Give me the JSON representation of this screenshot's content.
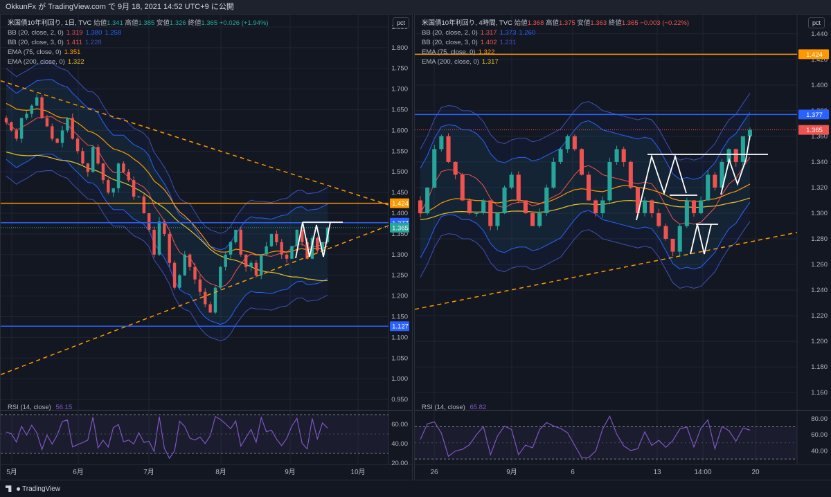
{
  "header": {
    "text": "OkkunFx が TradingView.com で 9月 18, 2021 14:52 UTC+9 に公開"
  },
  "footer": {
    "brand": "TradingView"
  },
  "colors": {
    "bg": "#131722",
    "grid": "#1f2433",
    "up": "#26a69a",
    "down": "#ef5350",
    "bb2": "#2962ff",
    "bb3": "#3f51b5",
    "ema75": "#ff9800",
    "ema200": "#e6c02b",
    "blue_line": "#2962ff",
    "orange_line": "#ff9800",
    "rsi": "#7e57c2"
  },
  "panels": [
    {
      "legend": {
        "title": "米国債10年利回り, 1日, TVC",
        "ohlc": [
          [
            "始値",
            "1.341"
          ],
          [
            "高値",
            "1.385"
          ],
          [
            "安値",
            "1.326"
          ],
          [
            "終値",
            "1.365"
          ]
        ],
        "change": "+0.026 (+1.94%)",
        "indicators": [
          {
            "label": "BB (20, close, 2, 0)",
            "values": [
              "1.319",
              "1.380",
              "1.258"
            ]
          },
          {
            "label": "BB (20, close, 3, 0)",
            "values": [
              "1.411",
              "1.228"
            ]
          },
          {
            "label": "EMA (75, close, 0)",
            "values": [
              "1.351"
            ]
          },
          {
            "label": "EMA (200, close, 0)",
            "values": [
              "1.322"
            ]
          }
        ]
      },
      "rsi_label": "RSI (14, close)",
      "rsi_value": "56.15",
      "pct_label": "pct",
      "price_labels": [
        {
          "v": "1.424",
          "c": "#ff9800"
        },
        {
          "v": "1.377",
          "c": "#2962ff"
        },
        {
          "v": "1.365",
          "c": "#26a69a"
        },
        {
          "v": "1.127",
          "c": "#2962ff"
        }
      ],
      "x_labels": [
        "5月",
        "6月",
        "7月",
        "8月",
        "9月",
        "10月"
      ],
      "y_ticks": [
        "1.850",
        "1.800",
        "1.750",
        "1.700",
        "1.650",
        "1.600",
        "1.550",
        "1.500",
        "1.450",
        "1.400",
        "1.350",
        "1.300",
        "1.250",
        "1.200",
        "1.150",
        "1.100",
        "1.050",
        "1.000",
        "0.950"
      ],
      "rsi_ticks": [
        "60.00",
        "40.00",
        "20.00"
      ]
    },
    {
      "legend": {
        "title": "米国債10年利回り, 4時間, TVC",
        "ohlc": [
          [
            "始値",
            "1.368"
          ],
          [
            "高値",
            "1.375"
          ],
          [
            "安値",
            "1.363"
          ],
          [
            "終値",
            "1.365"
          ]
        ],
        "change": "−0.003 (−0.22%)",
        "indicators": [
          {
            "label": "BB (20, close, 2, 0)",
            "values": [
              "1.317",
              "1.373",
              "1.260"
            ]
          },
          {
            "label": "BB (20, close, 3, 0)",
            "values": [
              "1.402",
              "1.231"
            ]
          },
          {
            "label": "EMA (75, close, 0)",
            "values": [
              "1.322"
            ]
          },
          {
            "label": "EMA (200, close, 0)",
            "values": [
              "1.317"
            ]
          }
        ]
      },
      "rsi_label": "RSI (14, close)",
      "rsi_value": "65.82",
      "pct_label": "pct",
      "price_labels": [
        {
          "v": "1.424",
          "c": "#ff9800"
        },
        {
          "v": "1.377",
          "c": "#2962ff"
        },
        {
          "v": "1.365",
          "c": "#ef5350"
        }
      ],
      "x_labels": [
        "26",
        "9月",
        "6",
        "13",
        "14:00",
        "20"
      ],
      "y_ticks": [
        "1.440",
        "1.420",
        "1.400",
        "1.380",
        "1.360",
        "1.340",
        "1.320",
        "1.300",
        "1.280",
        "1.260",
        "1.240",
        "1.220",
        "1.200",
        "1.180",
        "1.160"
      ],
      "rsi_ticks": [
        "80.00",
        "60.00",
        "40.00"
      ]
    }
  ],
  "chart_data": [
    {
      "type": "candlestick",
      "title": "米国債10年利回り, 1日, TVC",
      "x_categories": [
        "5月",
        "6月",
        "7月",
        "8月",
        "9月",
        "10月"
      ],
      "ylim": [
        0.92,
        1.88
      ],
      "close_path": [
        1.62,
        1.6,
        1.58,
        1.63,
        1.64,
        1.66,
        1.68,
        1.63,
        1.61,
        1.58,
        1.57,
        1.6,
        1.63,
        1.58,
        1.55,
        1.52,
        1.5,
        1.56,
        1.52,
        1.48,
        1.45,
        1.46,
        1.52,
        1.5,
        1.48,
        1.44,
        1.44,
        1.4,
        1.36,
        1.3,
        1.38,
        1.35,
        1.28,
        1.22,
        1.25,
        1.3,
        1.27,
        1.24,
        1.21,
        1.18,
        1.16,
        1.22,
        1.27,
        1.3,
        1.33,
        1.36,
        1.3,
        1.27,
        1.28,
        1.25,
        1.3,
        1.32,
        1.35,
        1.33,
        1.3,
        1.29,
        1.32,
        1.36,
        1.33,
        1.29,
        1.34,
        1.31,
        1.33,
        1.365
      ],
      "horizontal_lines": [
        {
          "value": 1.424,
          "color": "orange"
        },
        {
          "value": 1.377,
          "color": "blue"
        },
        {
          "value": 1.127,
          "color": "blue"
        }
      ],
      "trendlines": [
        {
          "from": [
            0,
            1.72
          ],
          "to": [
            1,
            1.42
          ],
          "style": "dashed"
        },
        {
          "from": [
            0,
            1.01
          ],
          "to": [
            1,
            1.37
          ],
          "style": "dashed"
        }
      ],
      "bb2_upper": "1.380",
      "bb2_lower": "1.258",
      "bb3_upper": "1.411",
      "bb3_lower": "1.228",
      "ema75": "1.351",
      "ema200": "1.322",
      "rsi": {
        "value": 56.15,
        "levels": [
          70,
          30
        ],
        "ylim": [
          20,
          70
        ]
      }
    },
    {
      "type": "candlestick",
      "title": "米国債10年利回り, 4時間, TVC",
      "x_categories": [
        "26",
        "9月",
        "6",
        "13",
        "14:00",
        "20"
      ],
      "ylim": [
        1.145,
        1.455
      ],
      "close_path": [
        1.3,
        1.32,
        1.35,
        1.36,
        1.34,
        1.33,
        1.31,
        1.3,
        1.3,
        1.31,
        1.29,
        1.3,
        1.32,
        1.33,
        1.31,
        1.3,
        1.29,
        1.3,
        1.32,
        1.34,
        1.35,
        1.36,
        1.35,
        1.33,
        1.31,
        1.3,
        1.31,
        1.34,
        1.35,
        1.34,
        1.32,
        1.3,
        1.31,
        1.3,
        1.29,
        1.28,
        1.27,
        1.29,
        1.31,
        1.3,
        1.31,
        1.33,
        1.32,
        1.34,
        1.35,
        1.34,
        1.36,
        1.365
      ],
      "horizontal_lines": [
        {
          "value": 1.424,
          "color": "orange"
        },
        {
          "value": 1.377,
          "color": "blue"
        }
      ],
      "trendlines": [
        {
          "from": [
            0,
            1.225
          ],
          "to": [
            1,
            1.285
          ],
          "style": "dashed"
        }
      ],
      "bb2_upper": "1.373",
      "bb2_lower": "1.260",
      "bb3_upper": "1.402",
      "bb3_lower": "1.231",
      "ema75": "1.322",
      "ema200": "1.317",
      "rsi": {
        "value": 65.82,
        "levels": [
          70,
          30
        ],
        "ylim": [
          25,
          85
        ]
      }
    }
  ]
}
